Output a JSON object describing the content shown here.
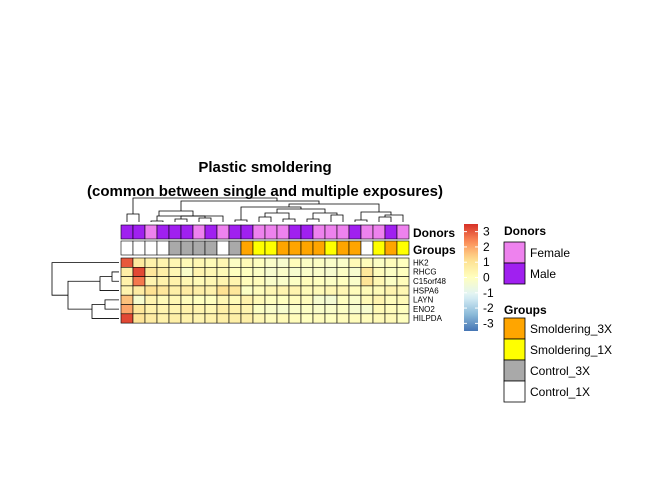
{
  "chart_data": {
    "type": "heatmap",
    "title_line1": "Plastic smoldering",
    "title_line2": "(common between single and multiple exposures)",
    "rows": [
      "HK2",
      "RHCG",
      "C15orf48",
      "HSPA6",
      "LAYN",
      "ENO2",
      "HILPDA"
    ],
    "values": [
      [
        3.0,
        0.8,
        0.5,
        0.4,
        0.3,
        0.2,
        0.3,
        0.2,
        0.3,
        -0.1,
        0.2,
        0.0,
        -0.2,
        -0.3,
        0.1,
        -0.1,
        -0.1,
        -0.2,
        -0.2,
        0.2,
        0.1,
        -0.1,
        0.1,
        0.0
      ],
      [
        0.6,
        3.2,
        0.9,
        0.6,
        0.3,
        -0.2,
        0.4,
        0.3,
        0.2,
        0.0,
        0.0,
        -0.1,
        -0.3,
        -0.2,
        -0.3,
        -0.2,
        -0.2,
        -0.3,
        -0.1,
        -0.3,
        0.9,
        0.1,
        -0.1,
        0.0
      ],
      [
        0.5,
        2.6,
        0.4,
        0.5,
        0.5,
        0.3,
        0.2,
        0.3,
        0.4,
        0.4,
        0.1,
        0.1,
        -0.2,
        -0.2,
        -0.1,
        0.1,
        0.0,
        -0.1,
        0.0,
        -0.2,
        1.0,
        0.3,
        -0.1,
        0.1
      ],
      [
        0.4,
        0.7,
        1.1,
        0.9,
        0.6,
        0.7,
        0.6,
        0.5,
        1.1,
        0.9,
        -0.1,
        0.1,
        0.3,
        0.4,
        0.4,
        0.2,
        0.2,
        0.3,
        0.3,
        0.1,
        0.2,
        0.2,
        0.4,
        0.3
      ],
      [
        1.6,
        -0.3,
        0.4,
        0.2,
        0.3,
        0.1,
        0.0,
        0.0,
        0.3,
        0.2,
        0.5,
        0.2,
        0.0,
        0.0,
        0.1,
        0.1,
        -0.3,
        -0.4,
        0.0,
        -0.2,
        0.2,
        0.4,
        0.1,
        0.2
      ],
      [
        2.0,
        0.9,
        0.5,
        0.4,
        0.4,
        0.5,
        0.4,
        0.3,
        0.6,
        0.5,
        0.4,
        -0.1,
        -0.2,
        -0.3,
        -0.2,
        -0.1,
        -0.2,
        -0.2,
        -0.1,
        -0.3,
        -0.3,
        0.2,
        0.1,
        0.0
      ],
      [
        3.2,
        1.0,
        0.7,
        0.5,
        0.6,
        0.5,
        0.4,
        0.5,
        0.6,
        0.6,
        0.6,
        0.3,
        0.1,
        0.2,
        0.1,
        0.0,
        0.1,
        0.0,
        0.1,
        0.1,
        0.1,
        0.2,
        0.2,
        0.0
      ]
    ],
    "color_scale": {
      "ticks": [
        3,
        2,
        1,
        0,
        -1,
        -2,
        -3
      ],
      "min": -3.5,
      "max": 3.5,
      "stops": [
        "#4575b4",
        "#91bfdb",
        "#e0f3f8",
        "#ffffbf",
        "#fee090",
        "#fc8d59",
        "#d73027"
      ]
    },
    "annotations": {
      "donors_label": "Donors",
      "groups_label": "Groups",
      "donors": [
        "Male",
        "Male",
        "Female",
        "Male",
        "Male",
        "Male",
        "Female",
        "Male",
        "Female",
        "Male",
        "Male",
        "Female",
        "Female",
        "Female",
        "Male",
        "Male",
        "Female",
        "Female",
        "Female",
        "Male",
        "Female",
        "Female",
        "Male",
        "Female"
      ],
      "groups": [
        "Control_1X",
        "Control_1X",
        "Control_1X",
        "Control_1X",
        "Control_3X",
        "Control_3X",
        "Control_3X",
        "Control_3X",
        "Control_1X",
        "Control_3X",
        "Smoldering_3X",
        "Smoldering_1X",
        "Smoldering_1X",
        "Smoldering_3X",
        "Smoldering_3X",
        "Smoldering_3X",
        "Smoldering_3X",
        "Smoldering_1X",
        "Smoldering_3X",
        "Smoldering_3X",
        "Control_1X",
        "Smoldering_1X",
        "Smoldering_3X",
        "Smoldering_1X"
      ]
    },
    "legend": {
      "donors_title": "Donors",
      "donors": [
        {
          "label": "Female",
          "color": "#ee82ee"
        },
        {
          "label": "Male",
          "color": "#a020f0"
        }
      ],
      "groups_title": "Groups",
      "groups": [
        {
          "label": "Smoldering_3X",
          "color": "#ffa500"
        },
        {
          "label": "Smoldering_1X",
          "color": "#ffff00"
        },
        {
          "label": "Control_3X",
          "color": "#a9a9a9"
        },
        {
          "label": "Control_1X",
          "color": "#ffffff"
        }
      ]
    }
  }
}
